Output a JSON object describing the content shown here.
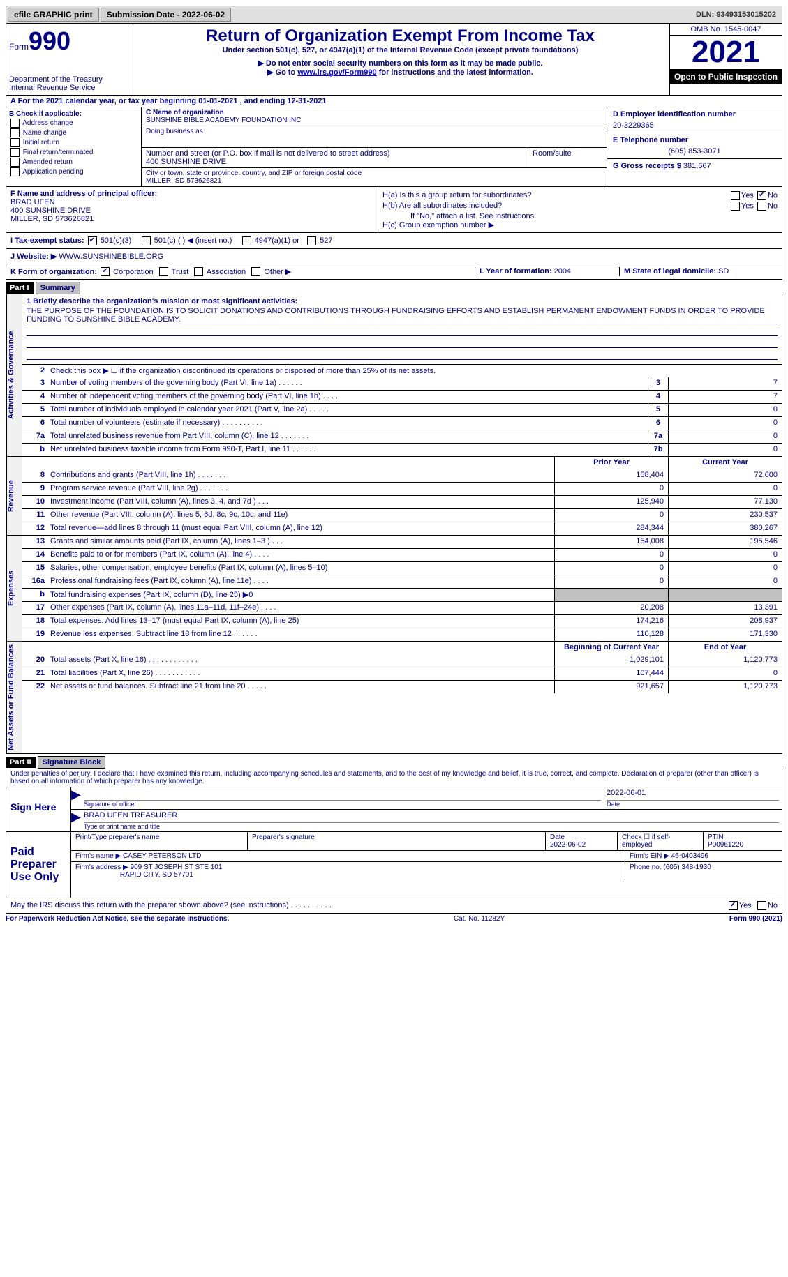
{
  "topbar": {
    "efile_btn": "efile GRAPHIC print",
    "submission_label": "Submission Date - 2022-06-02",
    "dln": "DLN: 93493153015202"
  },
  "header": {
    "form_label": "Form",
    "form_number": "990",
    "dept": "Department of the Treasury\nInternal Revenue Service",
    "title": "Return of Organization Exempt From Income Tax",
    "subtitle": "Under section 501(c), 527, or 4947(a)(1) of the Internal Revenue Code (except private foundations)",
    "instr1": "▶ Do not enter social security numbers on this form as it may be made public.",
    "instr2_pre": "▶ Go to ",
    "instr2_link": "www.irs.gov/Form990",
    "instr2_post": " for instructions and the latest information.",
    "omb": "OMB No. 1545-0047",
    "year": "2021",
    "opentopublic": "Open to Public Inspection"
  },
  "rowA": {
    "text_pre": "A For the 2021 calendar year, or tax year beginning ",
    "begin": "01-01-2021",
    "mid": " , and ending ",
    "end": "12-31-2021"
  },
  "colB": {
    "label": "B Check if applicable:",
    "opts": [
      "Address change",
      "Name change",
      "Initial return",
      "Final return/terminated",
      "Amended return",
      "Application pending"
    ]
  },
  "colC": {
    "name_label": "C Name of organization",
    "name": "SUNSHINE BIBLE ACADEMY FOUNDATION INC",
    "dba_label": "Doing business as",
    "dba": "",
    "street_label": "Number and street (or P.O. box if mail is not delivered to street address)",
    "street": "400 SUNSHINE DRIVE",
    "room_label": "Room/suite",
    "room": "",
    "city_label": "City or town, state or province, country, and ZIP or foreign postal code",
    "city": "MILLER, SD  573626821"
  },
  "colD": {
    "ein_label": "D Employer identification number",
    "ein": "20-3229365",
    "phone_label": "E Telephone number",
    "phone": "(605) 853-3071",
    "gross_label": "G Gross receipts $",
    "gross": "381,667"
  },
  "colF": {
    "label": "F Name and address of principal officer:",
    "name": "BRAD UFEN",
    "street": "400 SUNSHINE DRIVE",
    "city": "MILLER, SD  573626821"
  },
  "colH": {
    "ha": "H(a)  Is this a group return for subordinates?",
    "hb": "H(b)  Are all subordinates included?",
    "hb_note": "If \"No,\" attach a list. See instructions.",
    "hc": "H(c)  Group exemption number ▶",
    "yes": "Yes",
    "no": "No"
  },
  "rowI": {
    "label": "I   Tax-exempt status:",
    "opt1": "501(c)(3)",
    "opt2": "501(c) (   ) ◀ (insert no.)",
    "opt3": "4947(a)(1) or",
    "opt4": "527"
  },
  "rowJ": {
    "label": "J   Website: ▶",
    "value": "WWW.SUNSHINEBIBLE.ORG"
  },
  "rowK": {
    "label": "K Form of organization:",
    "opts": [
      "Corporation",
      "Trust",
      "Association",
      "Other ▶"
    ],
    "year_label": "L Year of formation:",
    "year": "2004",
    "state_label": "M State of legal domicile:",
    "state": "SD"
  },
  "part1": {
    "header": "Part I",
    "title": "Summary",
    "line1_label": "1  Briefly describe the organization's mission or most significant activities:",
    "mission": "THE PURPOSE OF THE FOUNDATION IS TO SOLICIT DONATIONS AND CONTRIBUTIONS THROUGH FUNDRAISING EFFORTS AND ESTABLISH PERMANENT ENDOWMENT FUNDS IN ORDER TO PROVIDE FUNDING TO SUNSHINE BIBLE ACADEMY.",
    "line2": "Check this box ▶ ☐  if the organization discontinued its operations or disposed of more than 25% of its net assets.",
    "side_ag": "Activities & Governance",
    "side_rev": "Revenue",
    "side_exp": "Expenses",
    "side_net": "Net Assets or Fund Balances",
    "prior_year": "Prior Year",
    "current_year": "Current Year",
    "begin_year": "Beginning of Current Year",
    "end_year": "End of Year",
    "lines_ag": [
      {
        "n": "3",
        "d": "Number of voting members of the governing body (Part VI, line 1a)   .     .     .     .     .     .",
        "box": "3",
        "v": "7"
      },
      {
        "n": "4",
        "d": "Number of independent voting members of the governing body (Part VI, line 1b)   .     .     .     .",
        "box": "4",
        "v": "7"
      },
      {
        "n": "5",
        "d": "Total number of individuals employed in calendar year 2021 (Part V, line 2a)   .     .     .     .     .",
        "box": "5",
        "v": "0"
      },
      {
        "n": "6",
        "d": "Total number of volunteers (estimate if necessary)     .     .     .     .     .     .     .     .     .     .",
        "box": "6",
        "v": "0"
      },
      {
        "n": "7a",
        "d": "Total unrelated business revenue from Part VIII, column (C), line 12   .     .     .     .     .     .     .",
        "box": "7a",
        "v": "0"
      },
      {
        "n": "b",
        "d": "Net unrelated business taxable income from Form 990-T, Part I, line 11   .     .     .     .     .     .",
        "box": "7b",
        "v": "0"
      }
    ],
    "lines_rev": [
      {
        "n": "8",
        "d": "Contributions and grants (Part VIII, line 1h)   .     .     .     .     .     .     .",
        "p": "158,404",
        "c": "72,600"
      },
      {
        "n": "9",
        "d": "Program service revenue (Part VIII, line 2g)   .     .     .     .     .     .     .",
        "p": "0",
        "c": "0"
      },
      {
        "n": "10",
        "d": "Investment income (Part VIII, column (A), lines 3, 4, and 7d )   .     .     .",
        "p": "125,940",
        "c": "77,130"
      },
      {
        "n": "11",
        "d": "Other revenue (Part VIII, column (A), lines 5, 6d, 8c, 9c, 10c, and 11e)",
        "p": "0",
        "c": "230,537"
      },
      {
        "n": "12",
        "d": "Total revenue—add lines 8 through 11 (must equal Part VIII, column (A), line 12)",
        "p": "284,344",
        "c": "380,267"
      }
    ],
    "lines_exp": [
      {
        "n": "13",
        "d": "Grants and similar amounts paid (Part IX, column (A), lines 1–3 )   .     .     .",
        "p": "154,008",
        "c": "195,546"
      },
      {
        "n": "14",
        "d": "Benefits paid to or for members (Part IX, column (A), line 4)   .     .     .     .",
        "p": "0",
        "c": "0"
      },
      {
        "n": "15",
        "d": "Salaries, other compensation, employee benefits (Part IX, column (A), lines 5–10)",
        "p": "0",
        "c": "0"
      },
      {
        "n": "16a",
        "d": "Professional fundraising fees (Part IX, column (A), line 11e)   .     .     .     .",
        "p": "0",
        "c": "0"
      },
      {
        "n": "b",
        "d": "Total fundraising expenses (Part IX, column (D), line 25) ▶0",
        "p": "",
        "c": "",
        "shaded": true
      },
      {
        "n": "17",
        "d": "Other expenses (Part IX, column (A), lines 11a–11d, 11f–24e)   .     .     .     .",
        "p": "20,208",
        "c": "13,391"
      },
      {
        "n": "18",
        "d": "Total expenses. Add lines 13–17 (must equal Part IX, column (A), line 25)",
        "p": "174,216",
        "c": "208,937"
      },
      {
        "n": "19",
        "d": "Revenue less expenses. Subtract line 18 from line 12   .     .     .     .     .     .",
        "p": "110,128",
        "c": "171,330"
      }
    ],
    "lines_net": [
      {
        "n": "20",
        "d": "Total assets (Part X, line 16)   .     .     .     .     .     .     .     .     .     .     .     .",
        "p": "1,029,101",
        "c": "1,120,773"
      },
      {
        "n": "21",
        "d": "Total liabilities (Part X, line 26)   .     .     .     .     .     .     .     .     .     .     .",
        "p": "107,444",
        "c": "0"
      },
      {
        "n": "22",
        "d": "Net assets or fund balances. Subtract line 21 from line 20   .     .     .     .     .",
        "p": "921,657",
        "c": "1,120,773"
      }
    ]
  },
  "part2": {
    "header": "Part II",
    "title": "Signature Block",
    "penalties": "Under penalties of perjury, I declare that I have examined this return, including accompanying schedules and statements, and to the best of my knowledge and belief, it is true, correct, and complete. Declaration of preparer (other than officer) is based on all information of which preparer has any knowledge."
  },
  "sign": {
    "label": "Sign Here",
    "sig_label": "Signature of officer",
    "date": "2022-06-01",
    "date_label": "Date",
    "name": "BRAD UFEN  TREASURER",
    "name_label": "Type or print name and title"
  },
  "preparer": {
    "label": "Paid Preparer Use Only",
    "print_label": "Print/Type preparer's name",
    "print": "",
    "sig_label": "Preparer's signature",
    "sig": "",
    "date_label": "Date",
    "date": "2022-06-02",
    "check_label": "Check ☐ if self-employed",
    "ptin_label": "PTIN",
    "ptin": "P00961220",
    "firm_name_label": "Firm's name     ▶",
    "firm_name": "CASEY PETERSON LTD",
    "firm_ein_label": "Firm's EIN ▶",
    "firm_ein": "46-0403496",
    "firm_addr_label": "Firm's address ▶",
    "firm_addr1": "909 ST JOSEPH ST STE 101",
    "firm_addr2": "RAPID CITY, SD  57701",
    "phone_label": "Phone no.",
    "phone": "(605) 348-1930"
  },
  "discuss": {
    "text": "May the IRS discuss this return with the preparer shown above? (see instructions)   .     .     .     .     .     .     .     .     .     .",
    "yes": "Yes",
    "no": "No"
  },
  "footer": {
    "left": "For Paperwork Reduction Act Notice, see the separate instructions.",
    "mid": "Cat. No. 11282Y",
    "right": "Form 990 (2021)"
  }
}
